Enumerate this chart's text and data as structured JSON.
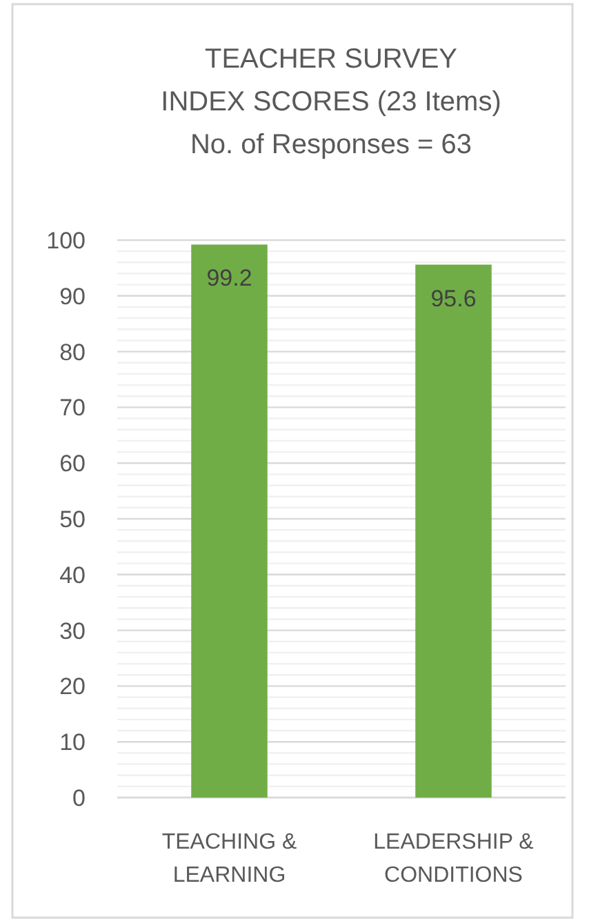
{
  "chart_data": {
    "type": "bar",
    "title": "TEACHER SURVEY\nINDEX SCORES (23 Items)",
    "subtitle": "No. of Responses = 63",
    "categories": [
      "TEACHING & LEARNING",
      "LEADERSHIP & CONDITIONS"
    ],
    "values": [
      99.2,
      95.6
    ],
    "color": "#70ad47",
    "data_labels": true,
    "grid": "y",
    "ylim": [
      0,
      100
    ],
    "yticks": [
      0,
      {
        "value": 2,
        "label": null
      },
      {
        "value": 4,
        "label": null
      },
      {
        "value": 6,
        "label": null
      },
      {
        "value": 8,
        "label": null
      },
      10,
      {
        "value": 12,
        "label": null
      },
      {
        "value": 14,
        "label": null
      },
      {
        "value": 16,
        "label": null
      },
      {
        "value": 18,
        "label": null
      },
      20,
      {
        "value": 22,
        "label": null
      },
      {
        "value": 24,
        "label": null
      },
      {
        "value": 26,
        "label": null
      },
      {
        "value": 28,
        "label": null
      },
      30,
      {
        "value": 32,
        "label": null
      },
      {
        "value": 34,
        "label": null
      },
      {
        "value": 36,
        "label": null
      },
      {
        "value": 38,
        "label": null
      },
      40,
      {
        "value": 42,
        "label": null
      },
      {
        "value": 44,
        "label": null
      },
      {
        "value": 46,
        "label": null
      },
      {
        "value": 48,
        "label": null
      },
      50,
      {
        "value": 52,
        "label": null
      },
      {
        "value": 54,
        "label": null
      },
      {
        "value": 56,
        "label": null
      },
      {
        "value": 58,
        "label": null
      },
      60,
      {
        "value": 62,
        "label": null
      },
      {
        "value": 64,
        "label": null
      },
      {
        "value": 66,
        "label": null
      },
      {
        "value": 68,
        "label": null
      },
      70,
      {
        "value": 72,
        "label": null
      },
      {
        "value": 74,
        "label": null
      },
      {
        "value": 76,
        "label": null
      },
      {
        "value": 78,
        "label": null
      },
      80,
      {
        "value": 82,
        "label": null
      },
      {
        "value": 84,
        "label": null
      },
      {
        "value": 86,
        "label": null
      },
      {
        "value": 88,
        "label": null
      },
      90,
      {
        "value": 92,
        "label": null
      },
      {
        "value": 94,
        "label": null
      },
      {
        "value": 96,
        "label": null
      },
      {
        "value": 98,
        "label": null
      },
      100
    ]
  }
}
